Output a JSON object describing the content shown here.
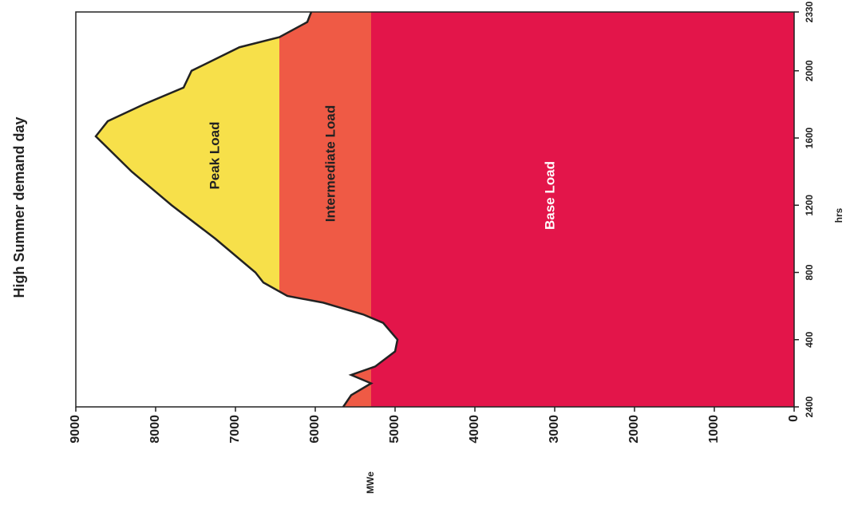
{
  "chart_data": {
    "type": "area",
    "title": "High Summer demand day",
    "x_label": "hrs",
    "y_label": "MWe",
    "x": [
      0,
      0.7,
      1.4,
      1.9,
      2.4,
      3.3,
      4,
      5,
      5.5,
      6.2,
      6.6,
      7.4,
      8,
      10,
      12,
      14,
      16.1,
      17,
      18,
      19,
      20,
      21.4,
      22,
      22.9,
      23.5
    ],
    "values": [
      5650,
      5550,
      5300,
      5550,
      5250,
      5000,
      4970,
      5150,
      5400,
      5900,
      6350,
      6650,
      6750,
      7250,
      7800,
      8300,
      8750,
      8600,
      8150,
      7650,
      7550,
      6950,
      6450,
      6100,
      6050
    ],
    "color": "#222222",
    "bands": [
      {
        "label": "Base Load",
        "upper": 5300,
        "color": "#e3154a"
      },
      {
        "label": "Intermediate Load",
        "upper": 6450,
        "color": "#ef5a45"
      },
      {
        "label": "Peak Load",
        "color": "#f7e04a"
      }
    ],
    "xlim": [
      0,
      23.5
    ],
    "xticks": [
      {
        "value": 0,
        "label": "2400"
      },
      {
        "value": 4,
        "label": "400"
      },
      {
        "value": 8,
        "label": "800"
      },
      {
        "value": 12,
        "label": "1200"
      },
      {
        "value": 16,
        "label": "1600"
      },
      {
        "value": 20,
        "label": "2000"
      },
      {
        "value": 23.5,
        "label": "2330"
      }
    ],
    "ylim": [
      0,
      9000
    ],
    "yticks": [
      0,
      1000,
      2000,
      3000,
      4000,
      5000,
      6000,
      7000,
      8000,
      9000
    ]
  }
}
